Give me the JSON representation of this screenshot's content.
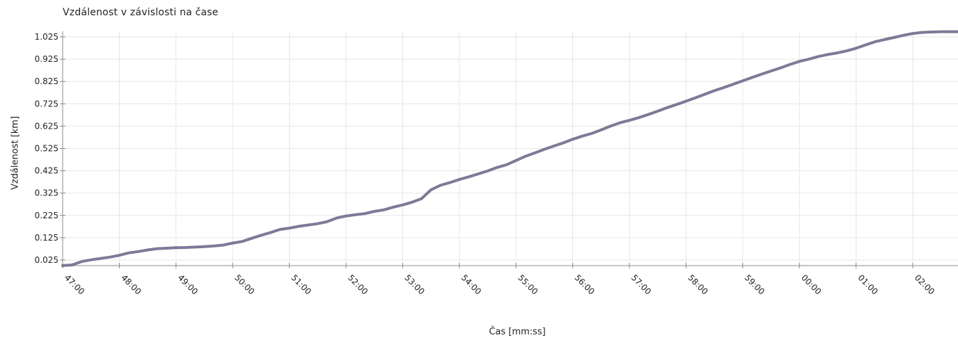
{
  "chart_data": {
    "type": "line",
    "title": "Vzdálenost v závislosti na čase",
    "xlabel": "Čas  [mm:ss]",
    "ylabel": "Vzdálenost [km]",
    "x_ticks": [
      "47:00",
      "48:00",
      "49:00",
      "50:00",
      "51:00",
      "52:00",
      "53:00",
      "54:00",
      "55:00",
      "56:00",
      "57:00",
      "58:00",
      "59:00",
      "00:00",
      "01:00",
      "02:00"
    ],
    "y_ticks": [
      "0.025",
      "0.125",
      "0.225",
      "0.325",
      "0.425",
      "0.525",
      "0.625",
      "0.725",
      "0.825",
      "0.925",
      "1.025"
    ],
    "ylim": [
      0.0,
      1.05
    ],
    "grid": true,
    "colors": {
      "line": "#7c7ca4",
      "line_shadow": "#4a4a5c",
      "grid": "#e6e6e6",
      "axis": "#888888"
    },
    "series": [
      {
        "x": [
          "47:00",
          "47:10",
          "47:20",
          "47:30",
          "47:40",
          "47:50",
          "48:00",
          "48:10",
          "48:20",
          "48:30",
          "48:40",
          "48:50",
          "49:00",
          "49:10",
          "49:20",
          "49:30",
          "49:40",
          "49:50",
          "50:00",
          "50:10",
          "50:20",
          "50:30",
          "50:40",
          "50:50",
          "51:00",
          "51:10",
          "51:20",
          "51:30",
          "51:40",
          "51:50",
          "52:00",
          "52:10",
          "52:20",
          "52:30",
          "52:40",
          "52:50",
          "53:00",
          "53:10",
          "53:20",
          "53:30",
          "53:40",
          "53:50",
          "54:00",
          "54:10",
          "54:20",
          "54:30",
          "54:40",
          "54:50",
          "55:00",
          "55:10",
          "55:20",
          "55:30",
          "55:40",
          "55:50",
          "56:00",
          "56:10",
          "56:20",
          "56:30",
          "56:40",
          "56:50",
          "57:00",
          "57:10",
          "57:20",
          "57:30",
          "57:40",
          "57:50",
          "58:00",
          "58:10",
          "58:20",
          "58:30",
          "58:40",
          "58:50",
          "59:00",
          "59:10",
          "59:20",
          "59:30",
          "59:40",
          "59:50",
          "00:00",
          "00:10",
          "00:20",
          "00:30",
          "00:40",
          "00:50",
          "01:00",
          "01:10",
          "01:20",
          "01:30",
          "01:40",
          "01:50",
          "02:00",
          "02:10",
          "02:20",
          "02:30",
          "02:40",
          "02:50"
        ],
        "values": [
          0.0,
          0.003,
          0.018,
          0.026,
          0.032,
          0.038,
          0.046,
          0.057,
          0.063,
          0.07,
          0.076,
          0.078,
          0.08,
          0.081,
          0.083,
          0.085,
          0.088,
          0.092,
          0.101,
          0.108,
          0.122,
          0.136,
          0.148,
          0.162,
          0.168,
          0.176,
          0.182,
          0.188,
          0.197,
          0.213,
          0.222,
          0.228,
          0.233,
          0.243,
          0.25,
          0.262,
          0.272,
          0.284,
          0.3,
          0.34,
          0.36,
          0.372,
          0.386,
          0.398,
          0.411,
          0.424,
          0.44,
          0.452,
          0.471,
          0.49,
          0.505,
          0.521,
          0.536,
          0.55,
          0.566,
          0.58,
          0.592,
          0.608,
          0.625,
          0.64,
          0.651,
          0.663,
          0.677,
          0.692,
          0.708,
          0.722,
          0.737,
          0.752,
          0.768,
          0.784,
          0.798,
          0.813,
          0.828,
          0.843,
          0.858,
          0.872,
          0.886,
          0.901,
          0.915,
          0.925,
          0.937,
          0.946,
          0.953,
          0.962,
          0.974,
          0.989,
          1.003,
          1.013,
          1.022,
          1.032,
          1.04,
          1.045,
          1.047,
          1.048,
          1.048,
          1.048
        ]
      }
    ]
  }
}
